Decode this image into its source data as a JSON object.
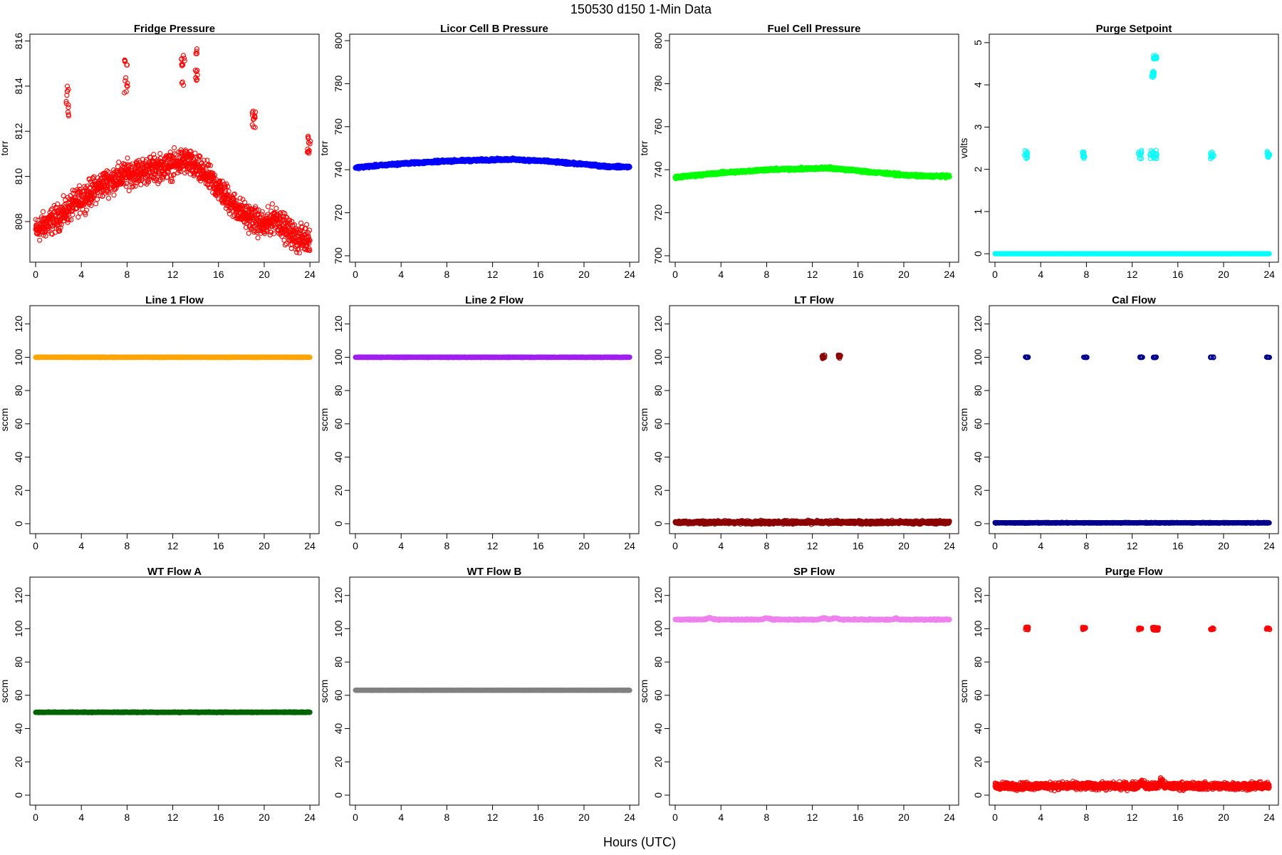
{
  "figure": {
    "title": "150530   d150   1-Min Data",
    "xlabel": "Hours (UTC)"
  },
  "chart_data": [
    {
      "type": "scatter",
      "title": "Fridge Pressure",
      "ylabel": "torr",
      "color": "#ff0000",
      "xlim": [
        -0.5,
        24.8
      ],
      "ylim": [
        806.2,
        816.3
      ],
      "xticks": [
        0,
        4,
        8,
        12,
        16,
        20,
        24
      ],
      "yticks": [
        808,
        810,
        812,
        814,
        816
      ],
      "baseline": [
        [
          0,
          807.6
        ],
        [
          2,
          808.2
        ],
        [
          4,
          809.0
        ],
        [
          6,
          809.7
        ],
        [
          8,
          810.1
        ],
        [
          10,
          810.3
        ],
        [
          12,
          810.5
        ],
        [
          13,
          810.7
        ],
        [
          14,
          810.4
        ],
        [
          15,
          810.0
        ],
        [
          16,
          809.5
        ],
        [
          17,
          808.9
        ],
        [
          18,
          808.4
        ],
        [
          19,
          808.1
        ],
        [
          20,
          807.8
        ],
        [
          21,
          808.2
        ],
        [
          22,
          807.6
        ],
        [
          23,
          807.2
        ],
        [
          24,
          807.3
        ]
      ],
      "noise": 0.5,
      "clusters": [
        {
          "x": 2.8,
          "y": 813.2,
          "h": 1.8
        },
        {
          "x": 7.9,
          "y": 814.5,
          "h": 1.6
        },
        {
          "x": 12.9,
          "y": 815.0,
          "h": 2.0
        },
        {
          "x": 14.1,
          "y": 814.8,
          "h": 2.0
        },
        {
          "x": 19.1,
          "y": 812.5,
          "h": 0.8
        },
        {
          "x": 23.9,
          "y": 811.4,
          "h": 0.8
        }
      ]
    },
    {
      "type": "scatter",
      "title": "Licor Cell B Pressure",
      "ylabel": "torr",
      "color": "#0000ff",
      "xlim": [
        -0.5,
        24.8
      ],
      "ylim": [
        697,
        803
      ],
      "xticks": [
        0,
        4,
        8,
        12,
        16,
        20,
        24
      ],
      "yticks": [
        700,
        720,
        740,
        760,
        780,
        800
      ],
      "baseline": [
        [
          0,
          741.0
        ],
        [
          4,
          742.8
        ],
        [
          8,
          744.0
        ],
        [
          12,
          744.6
        ],
        [
          13.5,
          744.8
        ],
        [
          16,
          744.2
        ],
        [
          20,
          742.5
        ],
        [
          22,
          741.5
        ],
        [
          24,
          741.3
        ]
      ],
      "noise": 0.5,
      "clusters": []
    },
    {
      "type": "scatter",
      "title": "Fuel Cell Pressure",
      "ylabel": "torr",
      "color": "#00ff00",
      "xlim": [
        -0.5,
        24.8
      ],
      "ylim": [
        697,
        803
      ],
      "xticks": [
        0,
        4,
        8,
        12,
        16,
        20,
        24
      ],
      "yticks": [
        700,
        720,
        740,
        760,
        780,
        800
      ],
      "baseline": [
        [
          0,
          736.5
        ],
        [
          4,
          738.5
        ],
        [
          8,
          740.0
        ],
        [
          12,
          740.5
        ],
        [
          13.5,
          740.8
        ],
        [
          16,
          739.5
        ],
        [
          20,
          737.5
        ],
        [
          22,
          737.0
        ],
        [
          24,
          737.0
        ]
      ],
      "noise": 0.5,
      "clusters": []
    },
    {
      "type": "scatter",
      "title": "Purge Setpoint",
      "ylabel": "volts",
      "color": "#00ffff",
      "xlim": [
        -0.5,
        24.8
      ],
      "ylim": [
        -0.2,
        5.2
      ],
      "xticks": [
        0,
        4,
        8,
        12,
        16,
        20,
        24
      ],
      "yticks": [
        0,
        1,
        2,
        3,
        4,
        5
      ],
      "baseline": [
        [
          0,
          0
        ],
        [
          24,
          0
        ]
      ],
      "noise": 0.0,
      "clusters": [
        {
          "x": 2.7,
          "y": 2.35,
          "h": 0.2
        },
        {
          "x": 7.8,
          "y": 2.35,
          "h": 0.2
        },
        {
          "x": 12.7,
          "y": 2.35,
          "h": 0.2
        },
        {
          "x": 13.7,
          "y": 2.35,
          "h": 0.2
        },
        {
          "x": 14.0,
          "y": 2.35,
          "h": 0.2
        },
        {
          "x": 13.8,
          "y": 4.25,
          "h": 0.15
        },
        {
          "x": 14.0,
          "y": 4.65,
          "h": 0.1
        },
        {
          "x": 19.0,
          "y": 2.35,
          "h": 0.2
        },
        {
          "x": 23.9,
          "y": 2.35,
          "h": 0.15
        }
      ]
    },
    {
      "type": "scatter",
      "title": "Line 1 Flow",
      "ylabel": "sccm",
      "color": "#ffa500",
      "xlim": [
        -0.5,
        24.8
      ],
      "ylim": [
        -6,
        131
      ],
      "xticks": [
        0,
        4,
        8,
        12,
        16,
        20,
        24
      ],
      "yticks": [
        0,
        20,
        40,
        60,
        80,
        100,
        120
      ],
      "baseline": [
        [
          0,
          100
        ],
        [
          24,
          100
        ]
      ],
      "noise": 0.15,
      "clusters": []
    },
    {
      "type": "scatter",
      "title": "Line 2 Flow",
      "ylabel": "sccm",
      "color": "#a020f0",
      "xlim": [
        -0.5,
        24.8
      ],
      "ylim": [
        -6,
        131
      ],
      "xticks": [
        0,
        4,
        8,
        12,
        16,
        20,
        24
      ],
      "yticks": [
        0,
        20,
        40,
        60,
        80,
        100,
        120
      ],
      "baseline": [
        [
          0,
          100
        ],
        [
          24,
          100
        ]
      ],
      "noise": 0.15,
      "clusters": []
    },
    {
      "type": "scatter",
      "title": "LT Flow",
      "ylabel": "sccm",
      "color": "#8b0000",
      "xlim": [
        -0.5,
        24.8
      ],
      "ylim": [
        -6,
        131
      ],
      "xticks": [
        0,
        4,
        8,
        12,
        16,
        20,
        24
      ],
      "yticks": [
        0,
        20,
        40,
        60,
        80,
        100,
        120
      ],
      "baseline": [
        [
          0,
          0.8
        ],
        [
          24,
          0.8
        ]
      ],
      "noise": 0.8,
      "clusters": [
        {
          "x": 13.0,
          "y": 100,
          "h": 3
        },
        {
          "x": 14.4,
          "y": 100,
          "h": 3
        }
      ]
    },
    {
      "type": "scatter",
      "title": "Cal Flow",
      "ylabel": "sccm",
      "color": "#00008b",
      "xlim": [
        -0.5,
        24.8
      ],
      "ylim": [
        -6,
        131
      ],
      "xticks": [
        0,
        4,
        8,
        12,
        16,
        20,
        24
      ],
      "yticks": [
        0,
        20,
        40,
        60,
        80,
        100,
        120
      ],
      "baseline": [
        [
          0,
          0.5
        ],
        [
          24,
          0.5
        ]
      ],
      "noise": 0.2,
      "clusters": [
        {
          "x": 2.8,
          "y": 100,
          "h": 0.5
        },
        {
          "x": 7.9,
          "y": 100,
          "h": 0.5
        },
        {
          "x": 12.8,
          "y": 100,
          "h": 0.5
        },
        {
          "x": 14.0,
          "y": 100,
          "h": 0.5
        },
        {
          "x": 19.0,
          "y": 100,
          "h": 0.5
        },
        {
          "x": 23.9,
          "y": 100,
          "h": 0.3
        }
      ]
    },
    {
      "type": "scatter",
      "title": "WT Flow A",
      "ylabel": "sccm",
      "color": "#006400",
      "xlim": [
        -0.5,
        24.8
      ],
      "ylim": [
        -6,
        131
      ],
      "xticks": [
        0,
        4,
        8,
        12,
        16,
        20,
        24
      ],
      "yticks": [
        0,
        20,
        40,
        60,
        80,
        100,
        120
      ],
      "baseline": [
        [
          0,
          49.8
        ],
        [
          24,
          49.8
        ]
      ],
      "noise": 0.2,
      "clusters": []
    },
    {
      "type": "scatter",
      "title": "WT Flow B",
      "ylabel": "sccm",
      "color": "#808080",
      "xlim": [
        -0.5,
        24.8
      ],
      "ylim": [
        -6,
        131
      ],
      "xticks": [
        0,
        4,
        8,
        12,
        16,
        20,
        24
      ],
      "yticks": [
        0,
        20,
        40,
        60,
        80,
        100,
        120
      ],
      "baseline": [
        [
          0,
          63
        ],
        [
          24,
          63
        ]
      ],
      "noise": 0.1,
      "clusters": []
    },
    {
      "type": "scatter",
      "title": "SP Flow",
      "ylabel": "sccm",
      "color": "#ee82ee",
      "xlim": [
        -0.5,
        24.8
      ],
      "ylim": [
        -6,
        131
      ],
      "xticks": [
        0,
        4,
        8,
        12,
        16,
        20,
        24
      ],
      "yticks": [
        0,
        20,
        40,
        60,
        80,
        100,
        120
      ],
      "baseline": [
        [
          0,
          105.5
        ],
        [
          2.5,
          105.5
        ],
        [
          3,
          106.5
        ],
        [
          3.5,
          105.5
        ],
        [
          7.5,
          105.5
        ],
        [
          8,
          106.5
        ],
        [
          8.5,
          105.5
        ],
        [
          12.5,
          105.5
        ],
        [
          13,
          106.5
        ],
        [
          13.5,
          105.5
        ],
        [
          14,
          106.5
        ],
        [
          14.5,
          105.5
        ],
        [
          19,
          105.5
        ],
        [
          19.3,
          106.3
        ],
        [
          19.6,
          105.5
        ],
        [
          24,
          105.5
        ]
      ],
      "noise": 0.3,
      "clusters": []
    },
    {
      "type": "scatter",
      "title": "Purge Flow",
      "ylabel": "sccm",
      "color": "#ff0000",
      "xlim": [
        -0.5,
        24.8
      ],
      "ylim": [
        -6,
        131
      ],
      "xticks": [
        0,
        4,
        8,
        12,
        16,
        20,
        24
      ],
      "yticks": [
        0,
        20,
        40,
        60,
        80,
        100,
        120
      ],
      "baseline": [
        [
          0,
          5.5
        ],
        [
          12.5,
          5.5
        ],
        [
          12.8,
          8
        ],
        [
          13.2,
          5.5
        ],
        [
          14.3,
          5.5
        ],
        [
          14.5,
          9
        ],
        [
          14.8,
          5.5
        ],
        [
          24,
          5.5
        ]
      ],
      "noise": 1.8,
      "clusters": [
        {
          "x": 2.8,
          "y": 100,
          "h": 2
        },
        {
          "x": 7.8,
          "y": 100,
          "h": 2
        },
        {
          "x": 12.7,
          "y": 100,
          "h": 1.5
        },
        {
          "x": 13.9,
          "y": 100,
          "h": 2
        },
        {
          "x": 14.2,
          "y": 100,
          "h": 2
        },
        {
          "x": 19.0,
          "y": 100,
          "h": 1.5
        },
        {
          "x": 23.9,
          "y": 100,
          "h": 1
        }
      ]
    }
  ]
}
